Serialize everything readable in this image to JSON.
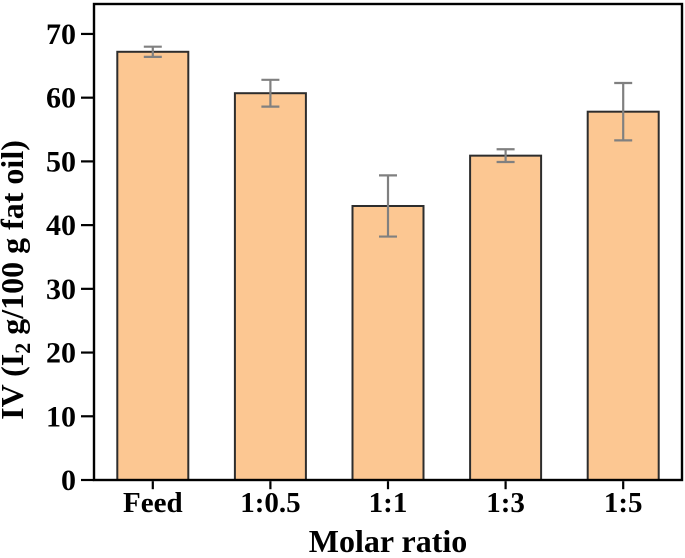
{
  "figure": {
    "background": "#ffffff"
  },
  "chart_data": {
    "type": "bar",
    "title": "",
    "categories": [
      "Feed",
      "1:0.5",
      "1:1",
      "1:3",
      "1:5"
    ],
    "values": [
      67.2,
      60.7,
      43.0,
      50.9,
      57.8
    ],
    "errors": [
      0.8,
      2.1,
      4.8,
      1.0,
      4.5
    ],
    "xlabel": "Molar ratio",
    "ylabel": "IV (I2 g/100 g fat oil)",
    "ylabel_parts": {
      "prefix": "IV (I",
      "subscript": "2",
      "suffix": " g/100 g fat oil)"
    },
    "ylim": [
      0,
      74.7
    ],
    "yticks": [
      0,
      10,
      20,
      30,
      40,
      50,
      60,
      70
    ],
    "grid": false,
    "legend": null,
    "frame": "full-box",
    "error_bars": "symmetric-with-caps",
    "colors": {
      "bar_fill": "#FCC792",
      "bar_edge": "#2D2D2D",
      "error_bar": "#808080",
      "axis": "#000000",
      "text": "#000000",
      "background": "#FFFFFF"
    }
  }
}
